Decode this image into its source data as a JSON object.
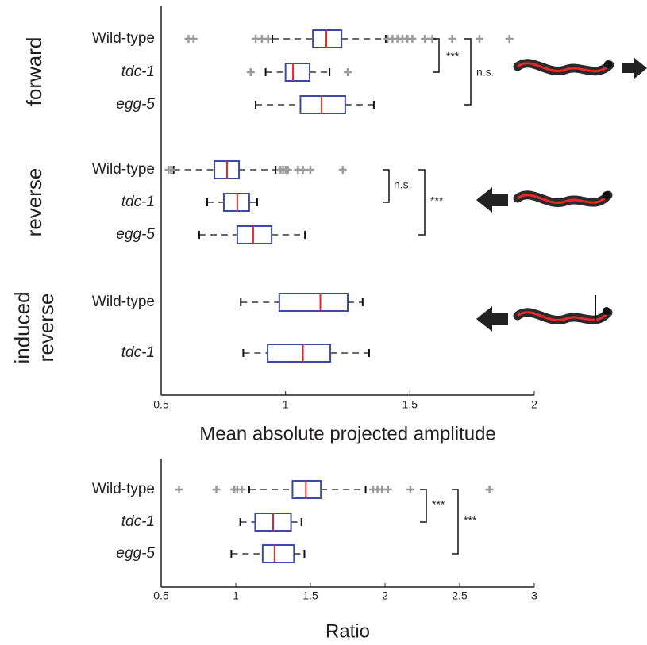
{
  "chart_data": [
    {
      "type": "box",
      "xlabel": "Mean absolute projected amplitude",
      "xlim": [
        0.5,
        2
      ],
      "xticks": [
        0.5,
        1,
        1.5,
        2
      ],
      "box_color": "#3a4aa5",
      "median_color": "#e8262b",
      "flier_color": "#9b9b9b",
      "groups": [
        {
          "label": "forward",
          "rows": [
            {
              "name": "Wild-type",
              "italic": false,
              "whislo": 0.947,
              "q1": 1.11,
              "med": 1.164,
              "q3": 1.225,
              "whishi": 1.403,
              "fliers": [
                0.61,
                0.63,
                0.88,
                0.905,
                0.93,
                1.41,
                1.43,
                1.45,
                1.47,
                1.49,
                1.51,
                1.56,
                1.59,
                1.67,
                1.78,
                1.9
              ]
            },
            {
              "name": "tdc-1",
              "italic": true,
              "whislo": 0.92,
              "q1": 1.0,
              "med": 1.03,
              "q3": 1.097,
              "whishi": 1.177,
              "fliers": [
                0.86,
                1.25
              ]
            },
            {
              "name": "egg-5",
              "italic": true,
              "whislo": 0.88,
              "q1": 1.06,
              "med": 1.145,
              "q3": 1.24,
              "whishi": 1.355,
              "fliers": []
            }
          ]
        },
        {
          "label": "reverse",
          "rows": [
            {
              "name": "Wild-type",
              "italic": false,
              "whislo": 0.55,
              "q1": 0.714,
              "med": 0.765,
              "q3": 0.813,
              "whishi": 0.96,
              "fliers": [
                0.53,
                0.54,
                0.98,
                0.99,
                1.0,
                1.01,
                1.05,
                1.07,
                1.1,
                1.23
              ]
            },
            {
              "name": "tdc-1",
              "italic": true,
              "whislo": 0.685,
              "q1": 0.752,
              "med": 0.806,
              "q3": 0.854,
              "whishi": 0.886,
              "fliers": []
            },
            {
              "name": "egg-5",
              "italic": true,
              "whislo": 0.653,
              "q1": 0.806,
              "med": 0.87,
              "q3": 0.944,
              "whishi": 1.078,
              "fliers": []
            }
          ]
        },
        {
          "label": "induced reverse",
          "rows": [
            {
              "name": "Wild-type",
              "italic": false,
              "whislo": 0.82,
              "q1": 0.975,
              "med": 1.14,
              "q3": 1.25,
              "whishi": 1.31,
              "fliers": []
            },
            {
              "name": "tdc-1",
              "italic": true,
              "whislo": 0.83,
              "q1": 0.928,
              "med": 1.07,
              "q3": 1.18,
              "whishi": 1.336,
              "fliers": []
            }
          ]
        }
      ],
      "annotations": [
        "***",
        "n.s.",
        "n.s.",
        "***"
      ]
    },
    {
      "type": "box",
      "xlabel": "Ratio",
      "xlim": [
        0.5,
        3
      ],
      "xticks": [
        0.5,
        1,
        1.5,
        2,
        2.5,
        3
      ],
      "box_color": "#3a4aa5",
      "median_color": "#e8262b",
      "flier_color": "#9b9b9b",
      "groups": [
        {
          "rows": [
            {
              "name": "Wild-type",
              "italic": false,
              "whislo": 1.09,
              "q1": 1.38,
              "med": 1.47,
              "q3": 1.57,
              "whishi": 1.87,
              "fliers": [
                0.62,
                0.87,
                0.99,
                1.01,
                1.04,
                1.92,
                1.95,
                1.98,
                2.02,
                2.17,
                2.7
              ]
            },
            {
              "name": "tdc-1",
              "italic": true,
              "whislo": 1.03,
              "q1": 1.13,
              "med": 1.25,
              "q3": 1.37,
              "whishi": 1.44,
              "fliers": []
            },
            {
              "name": "egg-5",
              "italic": true,
              "whislo": 0.97,
              "q1": 1.18,
              "med": 1.26,
              "q3": 1.39,
              "whishi": 1.46,
              "fliers": []
            }
          ]
        }
      ],
      "annotations": [
        "***",
        "***"
      ]
    }
  ]
}
